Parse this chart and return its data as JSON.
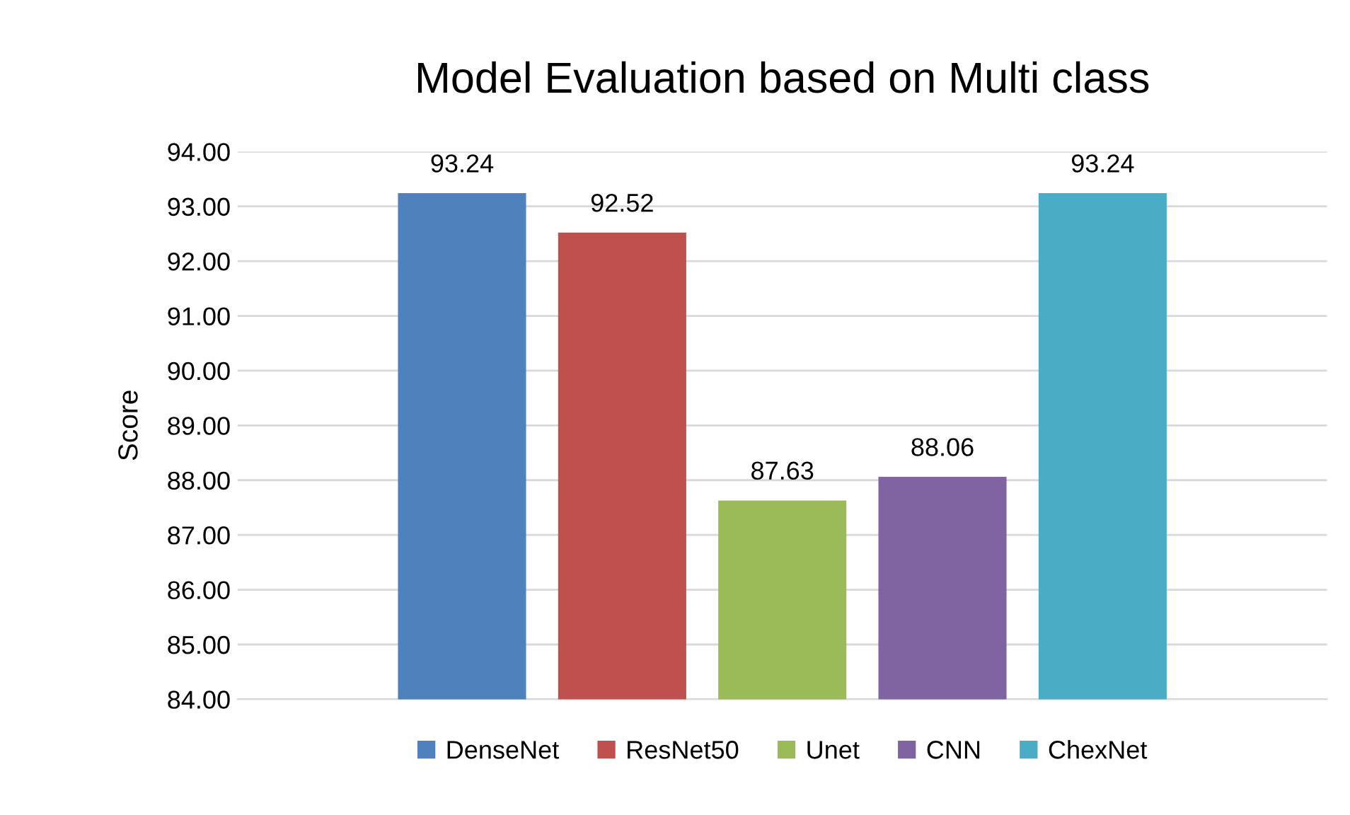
{
  "chart_data": {
    "type": "bar",
    "title": "Model Evaluation based on Multi class",
    "ylabel": "Score",
    "categories": [
      null
    ],
    "series": [
      {
        "name": "DenseNet",
        "color": "#4f81bd",
        "values": [
          93.24
        ]
      },
      {
        "name": "ResNet50",
        "color": "#c0504d",
        "values": [
          92.52
        ]
      },
      {
        "name": "Unet",
        "color": "#9bbb59",
        "values": [
          87.63
        ]
      },
      {
        "name": "CNN",
        "color": "#8064a2",
        "values": [
          88.06
        ]
      },
      {
        "name": "ChexNet",
        "color": "#4bacc6",
        "values": [
          93.24
        ]
      }
    ],
    "ylim": [
      84,
      94
    ],
    "yticks": [
      {
        "value": 84,
        "label": "84.00"
      },
      {
        "value": 85,
        "label": "85.00"
      },
      {
        "value": 86,
        "label": "86.00"
      },
      {
        "value": 87,
        "label": "87.00"
      },
      {
        "value": 88,
        "label": "88.00"
      },
      {
        "value": 89,
        "label": "89.00"
      },
      {
        "value": 90,
        "label": "90.00"
      },
      {
        "value": 91,
        "label": "91.00"
      },
      {
        "value": 92,
        "label": "92.00"
      },
      {
        "value": 93,
        "label": "93.00"
      },
      {
        "value": 94,
        "label": "94.00"
      }
    ],
    "grid": "y",
    "legend": "bottom",
    "data_labels": true
  }
}
